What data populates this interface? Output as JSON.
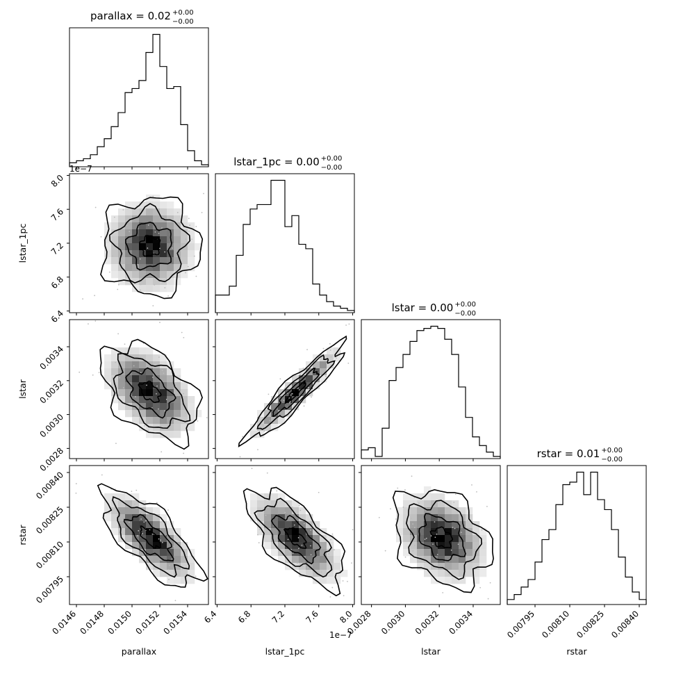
{
  "chart_data": {
    "type": "corner",
    "parameters": [
      "parallax",
      "lstar_1pc",
      "lstar",
      "rstar"
    ],
    "titles": [
      {
        "main": "parallax = 0.02",
        "sup": "+0.00",
        "sub": "−0.00"
      },
      {
        "main": "lstar_1pc = 0.00",
        "sup": "+0.00",
        "sub": "−0.00"
      },
      {
        "main": "lstar = 0.00",
        "sup": "+0.00",
        "sub": "−0.00"
      },
      {
        "main": "rstar = 0.01",
        "sup": "+0.00",
        "sub": "−0.00"
      }
    ],
    "axis_labels": [
      "parallax",
      "lstar_1pc",
      "lstar",
      "rstar"
    ],
    "ranges": [
      [
        0.01455,
        0.01555
      ],
      [
        6.38,
        8.02
      ],
      [
        0.00274,
        0.00356
      ],
      [
        0.00783,
        0.00843
      ]
    ],
    "ticks": [
      [
        0.0146,
        0.0148,
        0.015,
        0.0152,
        0.0154
      ],
      [
        6.4,
        6.8,
        7.2,
        7.6,
        8.0
      ],
      [
        0.0028,
        0.003,
        0.0032,
        0.0034
      ],
      [
        0.00795,
        0.0081,
        0.00825,
        0.0084
      ]
    ],
    "tick_labels": [
      [
        "0.0146",
        "0.0148",
        "0.0150",
        "0.0152",
        "0.0154"
      ],
      [
        "6.4",
        "6.8",
        "7.2",
        "7.6",
        "8.0"
      ],
      [
        "0.0028",
        "0.0030",
        "0.0032",
        "0.0034"
      ],
      [
        "0.00795",
        "0.00810",
        "0.00825",
        "0.00840"
      ]
    ],
    "offset_text": "1e−7",
    "histograms": [
      {
        "bins": 20,
        "counts": [
          2,
          3,
          4,
          6,
          10,
          14,
          20,
          27,
          37,
          39,
          43,
          57,
          66,
          50,
          39,
          40,
          21,
          8,
          3,
          1
        ]
      },
      {
        "bins": 20,
        "counts": [
          8,
          8,
          12,
          26,
          40,
          47,
          49,
          49,
          60,
          60,
          39,
          44,
          31,
          29,
          13,
          8,
          5,
          3,
          2,
          1
        ]
      },
      {
        "bins": 20,
        "counts": [
          4,
          5,
          1,
          14,
          36,
          42,
          48,
          54,
          59,
          60,
          61,
          60,
          55,
          48,
          33,
          19,
          10,
          6,
          3,
          1
        ]
      },
      {
        "bins": 20,
        "counts": [
          2,
          4,
          7,
          10,
          17,
          26,
          30,
          40,
          48,
          49,
          53,
          44,
          53,
          42,
          38,
          30,
          19,
          11,
          5,
          2
        ]
      }
    ],
    "correlations": {
      "lstar_1pc|parallax": 0.0,
      "lstar|parallax": -0.45,
      "lstar|lstar_1pc": 0.93,
      "rstar|parallax": -0.72,
      "rstar|lstar_1pc": -0.68,
      "rstar|lstar": -0.3
    },
    "grid": false,
    "legend": "none"
  }
}
